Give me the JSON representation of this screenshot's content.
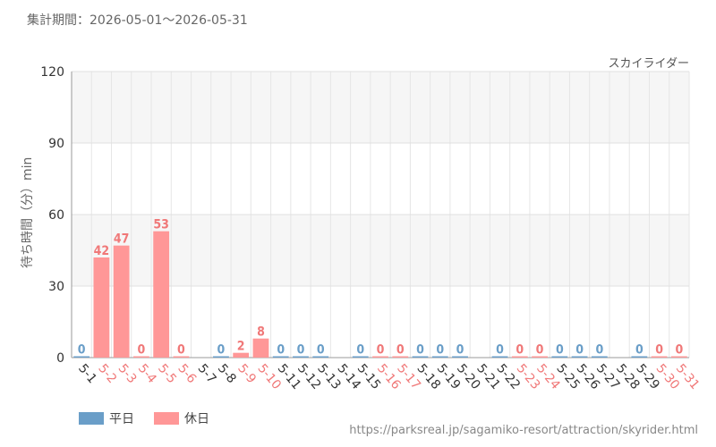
{
  "period_label": "集計期間：2026-05-01～2026-05-31",
  "source_url": "https://parksreal.jp/sagamiko-resort/attraction/skyrider.html",
  "colors": {
    "weekday": "#6a9ec8",
    "holiday": "#ff9797",
    "holiday_text": "#f07878",
    "weekday_text": "#6a9ec8"
  },
  "chart_data": {
    "type": "bar",
    "title": "スカイライダー",
    "ylabel": "待ち時間（分）min",
    "xlabel": "",
    "ylim": [
      0,
      120
    ],
    "yticks": [
      0,
      30,
      60,
      90,
      120
    ],
    "grid": true,
    "legend_position": "bottom-left",
    "legend": [
      {
        "key": "weekday",
        "label": "平日"
      },
      {
        "key": "holiday",
        "label": "休日"
      }
    ],
    "categories": [
      "5-1",
      "5-2",
      "5-3",
      "5-4",
      "5-5",
      "5-6",
      "5-7",
      "5-8",
      "5-9",
      "5-10",
      "5-11",
      "5-12",
      "5-13",
      "5-14",
      "5-15",
      "5-16",
      "5-17",
      "5-18",
      "5-19",
      "5-20",
      "5-21",
      "5-22",
      "5-23",
      "5-24",
      "5-25",
      "5-26",
      "5-27",
      "5-28",
      "5-29",
      "5-30",
      "5-31"
    ],
    "day_type": [
      "weekday",
      "holiday",
      "holiday",
      "holiday",
      "holiday",
      "holiday",
      "weekday",
      "weekday",
      "holiday",
      "holiday",
      "weekday",
      "weekday",
      "weekday",
      "weekday",
      "weekday",
      "holiday",
      "holiday",
      "weekday",
      "weekday",
      "weekday",
      "weekday",
      "weekday",
      "holiday",
      "holiday",
      "weekday",
      "weekday",
      "weekday",
      "weekday",
      "weekday",
      "holiday",
      "holiday"
    ],
    "values": [
      0,
      42,
      47,
      0,
      53,
      0,
      null,
      0,
      2,
      8,
      0,
      0,
      0,
      null,
      0,
      0,
      0,
      0,
      0,
      0,
      null,
      0,
      0,
      0,
      0,
      0,
      0,
      null,
      0,
      0,
      0
    ]
  }
}
